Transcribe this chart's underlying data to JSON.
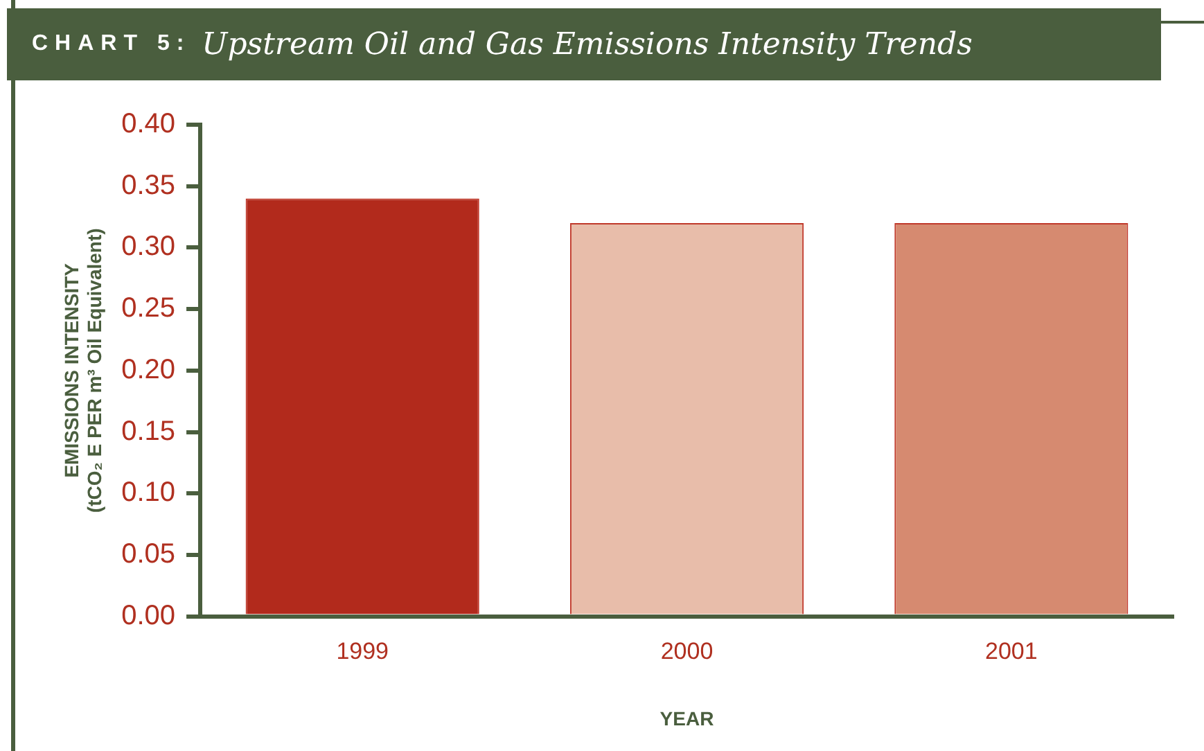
{
  "chart_data": {
    "type": "bar",
    "title": "CHART 5: Upstream Oil and Gas Emissions Intensity Trends",
    "xlabel": "YEAR",
    "ylabel": "EMISSIONS INTENSITY\n(tCO₂ E PER m³ Oil Equivalent)",
    "categories": [
      "1999",
      "2000",
      "2001"
    ],
    "values": [
      0.34,
      0.32,
      0.32
    ],
    "colors": [
      "#b22a1c",
      "#e8bdaa",
      "#d68a70"
    ],
    "ylim": [
      0,
      0.4
    ],
    "yticks": [
      {
        "value": 0,
        "label": "0.00"
      },
      {
        "value": 0.05,
        "label": "0.05"
      },
      {
        "value": 0.1,
        "label": "0.10"
      },
      {
        "value": 0.15,
        "label": "0.15"
      },
      {
        "value": 0.2,
        "label": "0.20"
      },
      {
        "value": 0.25,
        "label": "0.25"
      },
      {
        "value": 0.3,
        "label": "0.30"
      },
      {
        "value": 0.35,
        "label": "0.35"
      },
      {
        "value": 0.4,
        "label": "0.40"
      }
    ]
  }
}
